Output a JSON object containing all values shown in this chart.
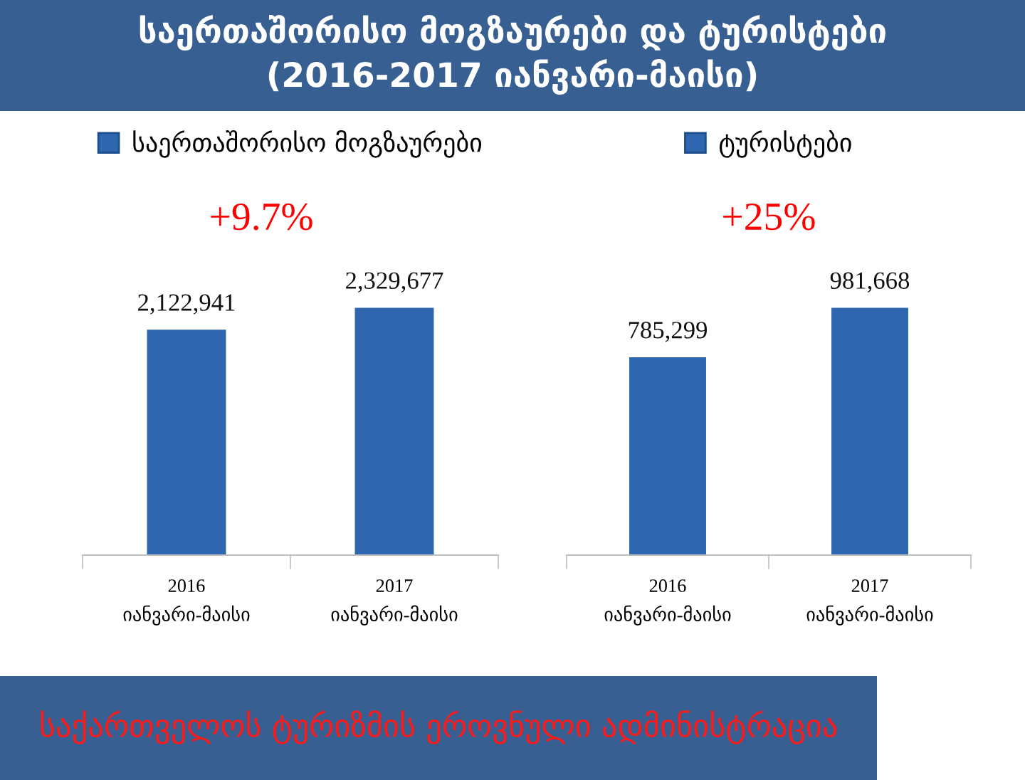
{
  "chart_data": [
    {
      "type": "bar",
      "title": "საერთაშორისო მოგზაურები და ტურისტები",
      "subtitle": "(2016-2017 იანვარი-მაისი)",
      "categories": [
        "2016\nიანვარი-მაისი",
        "2017\nიანვარი-მაისი"
      ],
      "series": [
        {
          "name": "საერთაშორისო მოგზაურები",
          "color": "#2f66b0",
          "values": [
            2122941,
            2329677
          ],
          "value_labels": [
            "2,122,941",
            "2,329,677"
          ]
        }
      ],
      "legend": "top",
      "annotations": [
        "+9.7%"
      ]
    },
    {
      "type": "bar",
      "categories": [
        "2016\nიანვარი-მაისი",
        "2017\nიანვარი-მაისი"
      ],
      "series": [
        {
          "name": "ტურისტები",
          "color": "#2f66b0",
          "values": [
            785299,
            981668
          ],
          "value_labels": [
            "785,299",
            "981,668"
          ]
        }
      ],
      "legend": "top",
      "annotations": [
        "+25%",
        "საქართველოს ტურიზმის ეროვნული ადმინისტრაცია"
      ]
    }
  ]
}
